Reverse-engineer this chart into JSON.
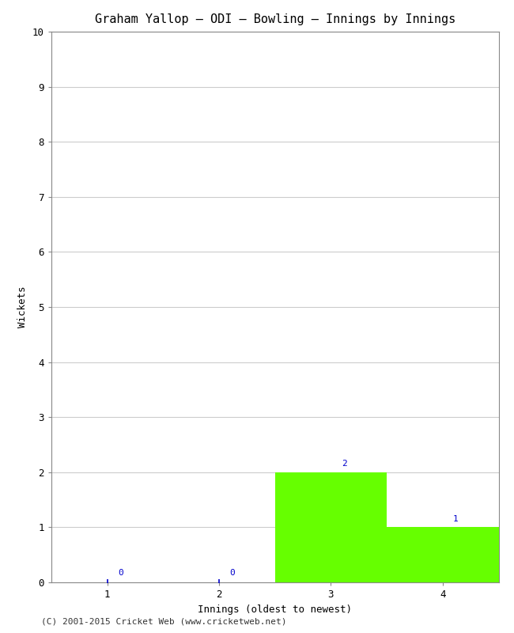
{
  "title": "Graham Yallop – ODI – Bowling – Innings by Innings",
  "xlabel": "Innings (oldest to newest)",
  "ylabel": "Wickets",
  "categories": [
    1,
    2,
    3,
    4
  ],
  "values": [
    0,
    0,
    2,
    1
  ],
  "bar_color_nonzero": "#66ff00",
  "annotation_color": "#0000cc",
  "ylim": [
    0,
    10
  ],
  "yticks": [
    0,
    1,
    2,
    3,
    4,
    5,
    6,
    7,
    8,
    9,
    10
  ],
  "xticks": [
    1,
    2,
    3,
    4
  ],
  "background_color": "#ffffff",
  "plot_bg_color": "#ffffff",
  "grid_color": "#cccccc",
  "copyright": "(C) 2001-2015 Cricket Web (www.cricketweb.net)",
  "title_fontsize": 11,
  "axis_label_fontsize": 9,
  "tick_fontsize": 9,
  "annotation_fontsize": 8,
  "copyright_fontsize": 8
}
